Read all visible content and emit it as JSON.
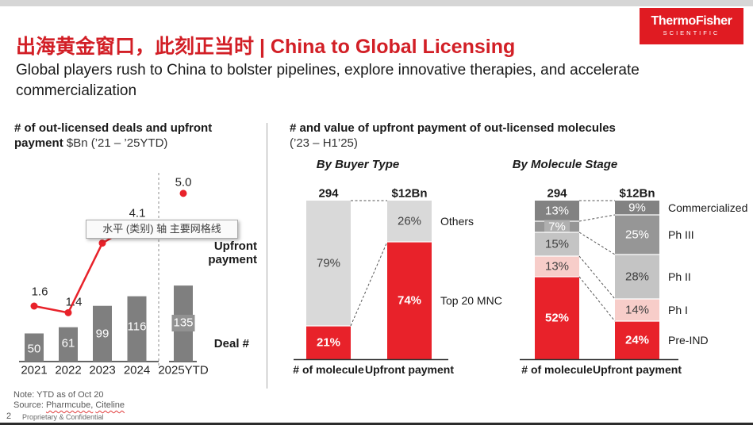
{
  "header": {
    "title": "出海黄金窗口，此刻正当时 | China to Global Licensing",
    "subtitle": "Global players rush to China to bolster pipelines, explore innovative therapies, and accelerate commercialization",
    "logo_line1": "ThermoFisher",
    "logo_line2": "SCIENTIFIC"
  },
  "tooltip": {
    "text": "水平 (类别) 轴 主要网格线"
  },
  "sections": {
    "right_header_bold": "# and value of upfront payment of out-licensed molecules",
    "right_header_regular": "(’23 – H1’25)"
  },
  "footer": {
    "note": "Note: YTD as of Oct 20",
    "source_prefix": "Source: ",
    "sources": [
      "Pharmcube,",
      "Citeline"
    ],
    "page_number": "2",
    "confidential": "Proprietary & Confidential"
  },
  "colors": {
    "brand_red": "#E01B22",
    "title_red": "#D21F26",
    "chart_red": "#E8222A",
    "bar_gray": "#7F7F7F",
    "light_gray": "#D9D9D9",
    "pink": "#F7CDC9",
    "axis_dark": "#333333"
  },
  "chart_data": [
    {
      "id": "deals",
      "type": "bar+line",
      "title_bold": "# of out-licensed deals and upfront payment",
      "title_regular": " $Bn (’21 – ’25YTD)",
      "categories": [
        "2021",
        "2022",
        "2023",
        "2024",
        "2025YTD"
      ],
      "bars": {
        "name": "Deal #",
        "values": [
          50,
          61,
          99,
          116,
          135
        ],
        "color": "#7F7F7F",
        "boxed_label_index": 4,
        "boxed_label_fill": "#929292"
      },
      "line": {
        "name": "Upfront payment",
        "values": [
          1.6,
          1.4,
          3.5,
          4.1,
          5.0
        ],
        "labels": [
          "1.6",
          "1.4",
          "",
          "4.1",
          "5.0"
        ],
        "color": "#E8222A",
        "detached_last_point": true
      },
      "bar_axis_label": "Deal #",
      "line_axis_label": "Upfront payment",
      "separator_after": "2024"
    },
    {
      "id": "by_buyer_type",
      "type": "stacked-bar",
      "panel_title": "By Buyer Type",
      "columns": [
        {
          "header": "294",
          "xlabel": "# of molecule"
        },
        {
          "header": "$12Bn",
          "xlabel": "Upfront payment"
        }
      ],
      "series": [
        {
          "name": "Others",
          "pct": [
            79,
            26
          ],
          "color": "#D9D9D9",
          "text": "dark",
          "bold": false
        },
        {
          "name": "Top 20 MNC",
          "pct": [
            21,
            74
          ],
          "color": "#E8222A",
          "text": "light",
          "bold": true
        }
      ]
    },
    {
      "id": "by_molecule_stage",
      "type": "stacked-bar",
      "panel_title": "By Molecule Stage",
      "columns": [
        {
          "header": "294",
          "xlabel": "# of molecule"
        },
        {
          "header": "$12Bn",
          "xlabel": "Upfront payment"
        }
      ],
      "series": [
        {
          "name": "Commercialized",
          "pct": [
            13,
            9
          ],
          "color": "#828282",
          "text": "light",
          "bold": false
        },
        {
          "name": "Ph III",
          "pct": [
            7,
            25
          ],
          "color": "#969696",
          "text": "light",
          "bold": false,
          "label_box_col0": "#AFAFAF"
        },
        {
          "name": "Ph II",
          "pct": [
            15,
            28
          ],
          "color": "#C4C4C4",
          "text": "dark",
          "bold": false
        },
        {
          "name": "Ph I",
          "pct": [
            13,
            14
          ],
          "color": "#F7CDC9",
          "text": "dark",
          "bold": false
        },
        {
          "name": "Pre-IND",
          "pct": [
            52,
            24
          ],
          "color": "#E8222A",
          "text": "light",
          "bold": true
        }
      ]
    }
  ]
}
